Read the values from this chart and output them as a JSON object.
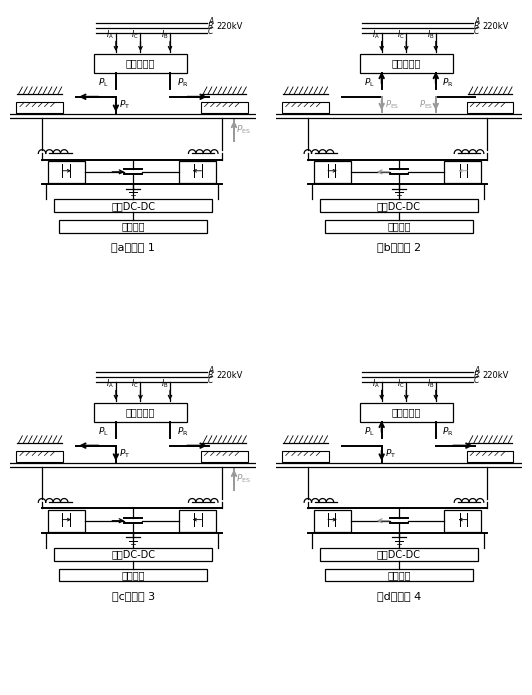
{
  "subplots": [
    {
      "label": "（a）工况 1",
      "case": 1
    },
    {
      "label": "（b）工况 2",
      "case": 2
    },
    {
      "label": "（c）工况 3",
      "case": 3
    },
    {
      "label": "（d）工况 4",
      "case": 4
    }
  ],
  "transformer_label": "牵引变压器",
  "dc_dc_label": "双向DC-DC",
  "storage_label": "储能装置",
  "voltage_label": "220kV",
  "bg_color": "#ffffff",
  "line_color": "#000000",
  "gray_color": "#999999"
}
